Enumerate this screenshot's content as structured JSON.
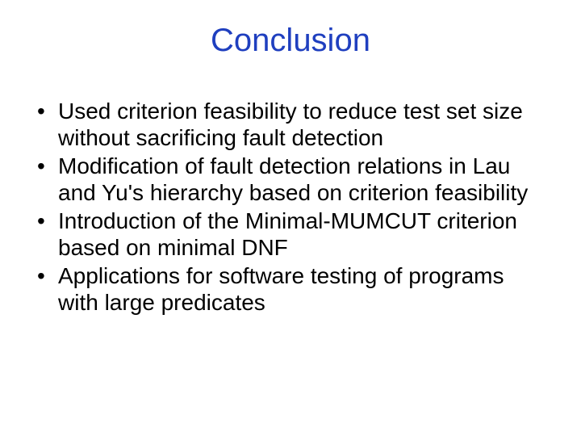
{
  "slide": {
    "title": "Conclusion",
    "title_color": "#1f3fbf",
    "title_fontsize": 40,
    "body_color": "#000000",
    "body_fontsize": 28,
    "background_color": "#ffffff",
    "bullets": [
      "Used criterion feasibility to reduce test set size without sacrificing fault detection",
      "Modification of fault detection relations in Lau and Yu's hierarchy based on criterion feasibility",
      "Introduction of the Minimal-MUMCUT criterion based on minimal DNF",
      "Applications for software testing of programs with large predicates"
    ]
  }
}
